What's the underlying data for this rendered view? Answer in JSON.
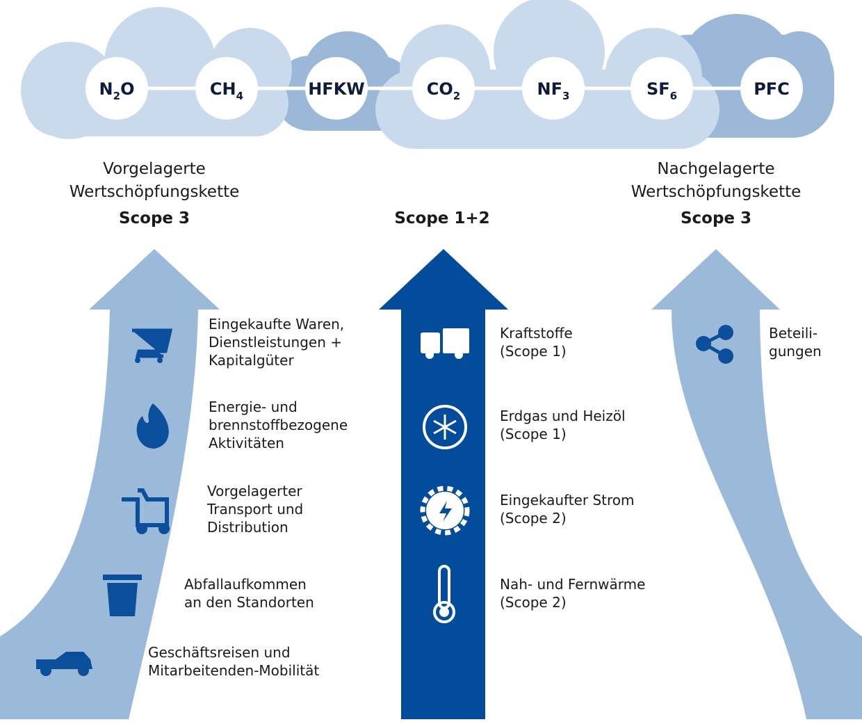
{
  "gases": [
    {
      "main": "N",
      "sub": "2",
      "tail": "O"
    },
    {
      "main": "CH",
      "sub": "4"
    },
    {
      "main": "HFKW"
    },
    {
      "main": "CO",
      "sub": "2"
    },
    {
      "main": "NF",
      "sub": "3"
    },
    {
      "main": "SF",
      "sub": "6"
    },
    {
      "main": "PFC"
    }
  ],
  "columns": [
    {
      "heading": [
        "Vorgelagerte",
        "Wertschöpfungskette"
      ],
      "scope": "Scope 3",
      "items": [
        {
          "lines": [
            "Eingekaufte Waren,",
            "Dienstleistungen +",
            "Kapitalgüter"
          ]
        },
        {
          "lines": [
            "Energie- und",
            "brennstoffbezogene",
            "Aktivitäten"
          ]
        },
        {
          "lines": [
            "Vorgelagerter",
            "Transport und",
            "Distribution"
          ]
        },
        {
          "lines": [
            "Abfallaufkommen",
            "an den Standorten"
          ]
        },
        {
          "lines": [
            "Geschäftsreisen und",
            "Mitarbeitenden-Mobilität"
          ]
        }
      ]
    },
    {
      "scope": "Scope 1+2",
      "items": [
        {
          "lines": [
            "Kraftstoffe",
            "(Scope 1)"
          ]
        },
        {
          "lines": [
            "Erdgas und Heizöl",
            "(Scope 1)"
          ]
        },
        {
          "lines": [
            "Eingekaufter Strom",
            "(Scope 2)"
          ]
        },
        {
          "lines": [
            "Nah- und Fernwärme",
            "(Scope 2)"
          ]
        }
      ]
    },
    {
      "heading": [
        "Nachgelagerte",
        "Wertschöpfungskette"
      ],
      "scope": "Scope 3",
      "items": [
        {
          "lines": [
            "Beteili-",
            "gungen"
          ]
        }
      ]
    }
  ]
}
